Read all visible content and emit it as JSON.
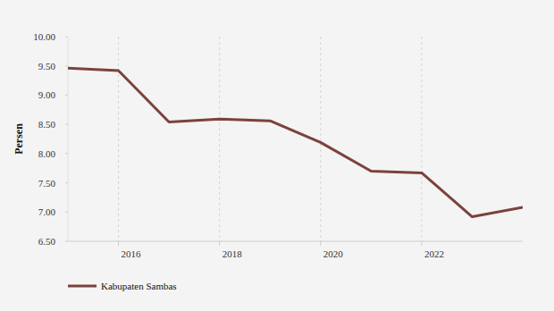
{
  "chart_data": {
    "type": "line",
    "y_label": "Persen",
    "x": [
      2015,
      2016,
      2017,
      2018,
      2019,
      2020,
      2021,
      2022,
      2023,
      2024
    ],
    "series": [
      {
        "name": "Kabupaten Sambas",
        "color": "#7b423d",
        "values": [
          9.46,
          9.42,
          8.54,
          8.59,
          8.56,
          8.19,
          7.7,
          7.67,
          6.92,
          7.08
        ]
      }
    ],
    "xlim": [
      2015,
      2024
    ],
    "xticks": [
      2016,
      2018,
      2020,
      2022
    ],
    "ylim": [
      6.5,
      10
    ],
    "yticks": [
      {
        "value": 6.5,
        "label": "6.50"
      },
      {
        "value": 7,
        "label": "7.00"
      },
      {
        "value": 7.5,
        "label": "7.50"
      },
      {
        "value": 8,
        "label": "8.00"
      },
      {
        "value": 8.5,
        "label": "8.50"
      },
      {
        "value": 9,
        "label": "9.00"
      },
      {
        "value": 9.5,
        "label": "9.50"
      },
      {
        "value": 10,
        "label": "10.00"
      }
    ],
    "grid": true,
    "legend": "bottom-left"
  }
}
